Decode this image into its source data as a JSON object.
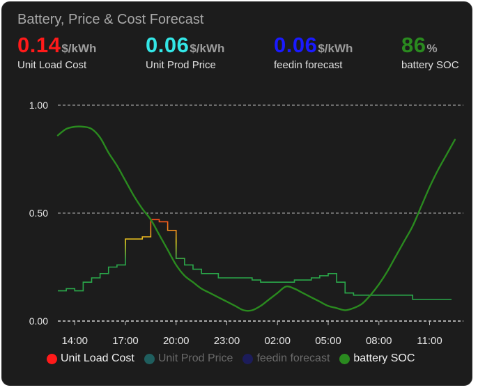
{
  "card": {
    "title": "Battery, Price & Cost Forecast"
  },
  "stats": [
    {
      "value": "0.14",
      "unit": "$/kWh",
      "label": "Unit Load Cost",
      "color": "#ff1a1a"
    },
    {
      "value": "0.06",
      "unit": "$/kWh",
      "label": "Unit Prod Price",
      "color": "#33e6e6"
    },
    {
      "value": "0.06",
      "unit": "$/kWh",
      "label": "feedin forecast",
      "color": "#1a1aff"
    },
    {
      "value": "86",
      "unit": "%",
      "label": "battery SOC",
      "color": "#2a8a1f"
    }
  ],
  "chart_data": {
    "type": "line",
    "x_unit": "hours",
    "x_ticks": [
      "14:00",
      "17:00",
      "20:00",
      "23:00",
      "02:00",
      "05:00",
      "08:00",
      "11:00"
    ],
    "y_ticks": [
      "1.00",
      "0.50",
      "0.00"
    ],
    "ylim": [
      0,
      1
    ],
    "grid": "dashed horizontal",
    "legend_position": "bottom",
    "series": [
      {
        "name": "Unit Load Cost",
        "color": "#ff1a1a",
        "legend_color": "#ff1a1a",
        "step": true,
        "x": [
          13.0,
          13.5,
          14.0,
          14.5,
          15.0,
          15.5,
          16.0,
          16.5,
          17.0,
          17.5,
          18.0,
          18.5,
          19.0,
          19.5,
          20.0,
          20.5,
          21.0,
          21.5,
          22.0,
          22.5,
          23.0,
          23.5,
          24.0,
          24.5,
          25.0,
          25.5,
          26.0,
          26.5,
          27.0,
          27.5,
          28.0,
          28.5,
          29.0,
          29.5,
          30.0,
          30.5,
          31.0,
          31.5,
          32.0,
          32.5,
          33.0,
          33.5,
          34.0,
          34.5,
          35.0,
          35.5,
          36.0
        ],
        "y": [
          0.14,
          0.15,
          0.14,
          0.18,
          0.2,
          0.22,
          0.25,
          0.26,
          0.38,
          0.38,
          0.39,
          0.47,
          0.46,
          0.42,
          0.29,
          0.26,
          0.24,
          0.22,
          0.22,
          0.2,
          0.2,
          0.2,
          0.2,
          0.19,
          0.18,
          0.18,
          0.18,
          0.18,
          0.19,
          0.19,
          0.2,
          0.21,
          0.22,
          0.18,
          0.13,
          0.12,
          0.12,
          0.12,
          0.12,
          0.12,
          0.12,
          0.12,
          0.1,
          0.1,
          0.1,
          0.1,
          0.1
        ],
        "gradient": [
          "#2aa84a",
          "#e6d21f",
          "#ff1a1a"
        ]
      },
      {
        "name": "Unit Prod Price",
        "color": "#1f5e5e",
        "legend_color": "#1f5e5e"
      },
      {
        "name": "feedin forecast",
        "color": "#1c1c5a",
        "legend_color": "#1c1c5a"
      },
      {
        "name": "battery SOC",
        "color": "#2a8a1f",
        "legend_color": "#2a8a1f",
        "x": [
          13.0,
          13.5,
          14.0,
          14.5,
          15.0,
          15.5,
          16.0,
          16.5,
          17.0,
          17.5,
          18.0,
          18.5,
          19.0,
          19.5,
          20.0,
          20.5,
          21.0,
          21.5,
          22.0,
          22.5,
          23.0,
          23.5,
          24.0,
          24.5,
          25.0,
          25.5,
          26.0,
          26.5,
          27.0,
          27.5,
          28.0,
          28.5,
          29.0,
          29.5,
          30.0,
          30.5,
          31.0,
          31.5,
          32.0,
          32.5,
          33.0,
          33.5,
          34.0,
          34.5,
          35.0,
          35.5,
          36.0,
          36.5
        ],
        "y": [
          0.86,
          0.89,
          0.9,
          0.9,
          0.89,
          0.85,
          0.78,
          0.72,
          0.65,
          0.58,
          0.52,
          0.47,
          0.4,
          0.33,
          0.26,
          0.21,
          0.18,
          0.15,
          0.13,
          0.11,
          0.09,
          0.07,
          0.05,
          0.05,
          0.07,
          0.1,
          0.13,
          0.16,
          0.15,
          0.13,
          0.11,
          0.09,
          0.07,
          0.06,
          0.05,
          0.06,
          0.08,
          0.12,
          0.17,
          0.23,
          0.3,
          0.37,
          0.44,
          0.53,
          0.62,
          0.7,
          0.77,
          0.84
        ]
      }
    ]
  }
}
